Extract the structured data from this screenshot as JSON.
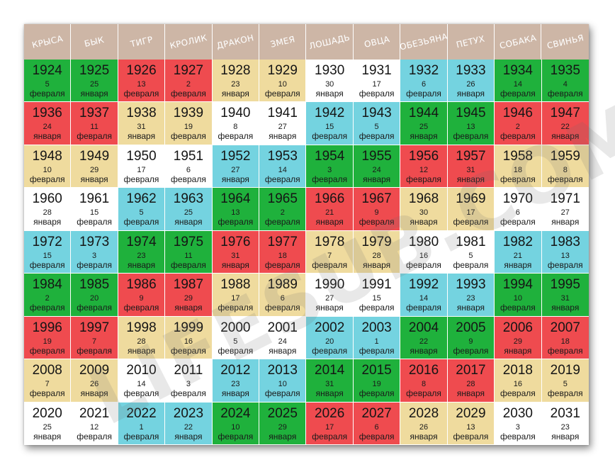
{
  "colors": {
    "green": "#1fb13c",
    "red": "#ef4b4f",
    "beige": "#efdb9e",
    "white": "#ffffff",
    "blue": "#74d3e0",
    "header": "#cdb6a6"
  },
  "animals": [
    "КРЫСА",
    "БЫК",
    "ТИГР",
    "КРОЛИК",
    "ДРАКОН",
    "ЗМЕЯ",
    "ЛОШАДЬ",
    "ОВЦА",
    "ОБЕЗЬЯНА",
    "ПЕТУХ",
    "СОБАКА",
    "СВИНЬЯ"
  ],
  "rows": [
    [
      {
        "year": "1924",
        "day": "5",
        "month": "февраля",
        "color": "green"
      },
      {
        "year": "1925",
        "day": "25",
        "month": "января",
        "color": "green"
      },
      {
        "year": "1926",
        "day": "13",
        "month": "февраля",
        "color": "red"
      },
      {
        "year": "1927",
        "day": "2",
        "month": "февраля",
        "color": "red"
      },
      {
        "year": "1928",
        "day": "23",
        "month": "января",
        "color": "beige"
      },
      {
        "year": "1929",
        "day": "10",
        "month": "февраля",
        "color": "beige"
      },
      {
        "year": "1930",
        "day": "30",
        "month": "января",
        "color": "white"
      },
      {
        "year": "1931",
        "day": "17",
        "month": "февраля",
        "color": "white"
      },
      {
        "year": "1932",
        "day": "6",
        "month": "февраля",
        "color": "blue"
      },
      {
        "year": "1933",
        "day": "26",
        "month": "января",
        "color": "blue"
      },
      {
        "year": "1934",
        "day": "14",
        "month": "февраля",
        "color": "green"
      },
      {
        "year": "1935",
        "day": "4",
        "month": "февраля",
        "color": "green"
      }
    ],
    [
      {
        "year": "1936",
        "day": "24",
        "month": "января",
        "color": "red"
      },
      {
        "year": "1937",
        "day": "11",
        "month": "февраля",
        "color": "red"
      },
      {
        "year": "1938",
        "day": "31",
        "month": "января",
        "color": "beige"
      },
      {
        "year": "1939",
        "day": "19",
        "month": "февраля",
        "color": "beige"
      },
      {
        "year": "1940",
        "day": "8",
        "month": "февраля",
        "color": "white"
      },
      {
        "year": "1941",
        "day": "27",
        "month": "января",
        "color": "white"
      },
      {
        "year": "1942",
        "day": "15",
        "month": "февраля",
        "color": "blue"
      },
      {
        "year": "1943",
        "day": "5",
        "month": "февраля",
        "color": "blue"
      },
      {
        "year": "1944",
        "day": "25",
        "month": "января",
        "color": "green"
      },
      {
        "year": "1945",
        "day": "13",
        "month": "февраля",
        "color": "green"
      },
      {
        "year": "1946",
        "day": "2",
        "month": "февраля",
        "color": "red"
      },
      {
        "year": "1947",
        "day": "22",
        "month": "января",
        "color": "red"
      }
    ],
    [
      {
        "year": "1948",
        "day": "10",
        "month": "февраля",
        "color": "beige"
      },
      {
        "year": "1949",
        "day": "29",
        "month": "января",
        "color": "beige"
      },
      {
        "year": "1950",
        "day": "17",
        "month": "февраля",
        "color": "white"
      },
      {
        "year": "1951",
        "day": "6",
        "month": "февраля",
        "color": "white"
      },
      {
        "year": "1952",
        "day": "27",
        "month": "января",
        "color": "blue"
      },
      {
        "year": "1953",
        "day": "14",
        "month": "февраля",
        "color": "blue"
      },
      {
        "year": "1954",
        "day": "3",
        "month": "февраля",
        "color": "green"
      },
      {
        "year": "1955",
        "day": "24",
        "month": "января",
        "color": "green"
      },
      {
        "year": "1956",
        "day": "12",
        "month": "февраля",
        "color": "red"
      },
      {
        "year": "1957",
        "day": "31",
        "month": "января",
        "color": "red"
      },
      {
        "year": "1958",
        "day": "18",
        "month": "февраля",
        "color": "beige"
      },
      {
        "year": "1959",
        "day": "8",
        "month": "февраля",
        "color": "beige"
      }
    ],
    [
      {
        "year": "1960",
        "day": "28",
        "month": "января",
        "color": "white"
      },
      {
        "year": "1961",
        "day": "15",
        "month": "февраля",
        "color": "white"
      },
      {
        "year": "1962",
        "day": "5",
        "month": "февраля",
        "color": "blue"
      },
      {
        "year": "1963",
        "day": "25",
        "month": "января",
        "color": "blue"
      },
      {
        "year": "1964",
        "day": "13",
        "month": "февраля",
        "color": "green"
      },
      {
        "year": "1965",
        "day": "2",
        "month": "февраля",
        "color": "green"
      },
      {
        "year": "1966",
        "day": "21",
        "month": "января",
        "color": "red"
      },
      {
        "year": "1967",
        "day": "9",
        "month": "февраля",
        "color": "red"
      },
      {
        "year": "1968",
        "day": "30",
        "month": "января",
        "color": "beige"
      },
      {
        "year": "1969",
        "day": "17",
        "month": "февраля",
        "color": "beige"
      },
      {
        "year": "1970",
        "day": "6",
        "month": "февраля",
        "color": "white"
      },
      {
        "year": "1971",
        "day": "27",
        "month": "января",
        "color": "white"
      }
    ],
    [
      {
        "year": "1972",
        "day": "15",
        "month": "февраля",
        "color": "blue"
      },
      {
        "year": "1973",
        "day": "3",
        "month": "февраля",
        "color": "blue"
      },
      {
        "year": "1974",
        "day": "23",
        "month": "января",
        "color": "green"
      },
      {
        "year": "1975",
        "day": "11",
        "month": "февраля",
        "color": "green"
      },
      {
        "year": "1976",
        "day": "31",
        "month": "января",
        "color": "red"
      },
      {
        "year": "1977",
        "day": "18",
        "month": "февраля",
        "color": "red"
      },
      {
        "year": "1978",
        "day": "7",
        "month": "февраля",
        "color": "beige"
      },
      {
        "year": "1979",
        "day": "28",
        "month": "января",
        "color": "beige"
      },
      {
        "year": "1980",
        "day": "16",
        "month": "февраля",
        "color": "white"
      },
      {
        "year": "1981",
        "day": "5",
        "month": "февраля",
        "color": "white"
      },
      {
        "year": "1982",
        "day": "21",
        "month": "января",
        "color": "blue"
      },
      {
        "year": "1983",
        "day": "13",
        "month": "февраля",
        "color": "blue"
      }
    ],
    [
      {
        "year": "1984",
        "day": "2",
        "month": "февраля",
        "color": "green"
      },
      {
        "year": "1985",
        "day": "20",
        "month": "февраля",
        "color": "green"
      },
      {
        "year": "1986",
        "day": "9",
        "month": "февраля",
        "color": "red"
      },
      {
        "year": "1987",
        "day": "29",
        "month": "января",
        "color": "red"
      },
      {
        "year": "1988",
        "day": "17",
        "month": "февраля",
        "color": "beige"
      },
      {
        "year": "1989",
        "day": "6",
        "month": "февраля",
        "color": "beige"
      },
      {
        "year": "1990",
        "day": "27",
        "month": "января",
        "color": "white"
      },
      {
        "year": "1991",
        "day": "15",
        "month": "февраля",
        "color": "white"
      },
      {
        "year": "1992",
        "day": "14",
        "month": "февраля",
        "color": "blue"
      },
      {
        "year": "1993",
        "day": "23",
        "month": "января",
        "color": "blue"
      },
      {
        "year": "1994",
        "day": "10",
        "month": "февраля",
        "color": "green"
      },
      {
        "year": "1995",
        "day": "31",
        "month": "января",
        "color": "green"
      }
    ],
    [
      {
        "year": "1996",
        "day": "19",
        "month": "февраля",
        "color": "red"
      },
      {
        "year": "1997",
        "day": "7",
        "month": "февраля",
        "color": "red"
      },
      {
        "year": "1998",
        "day": "28",
        "month": "января",
        "color": "beige"
      },
      {
        "year": "1999",
        "day": "16",
        "month": "февраля",
        "color": "beige"
      },
      {
        "year": "2000",
        "day": "5",
        "month": "февраля",
        "color": "white"
      },
      {
        "year": "2001",
        "day": "24",
        "month": "января",
        "color": "white"
      },
      {
        "year": "2002",
        "day": "20",
        "month": "февраля",
        "color": "blue"
      },
      {
        "year": "2003",
        "day": "1",
        "month": "февраля",
        "color": "blue"
      },
      {
        "year": "2004",
        "day": "22",
        "month": "января",
        "color": "green"
      },
      {
        "year": "2005",
        "day": "9",
        "month": "февраля",
        "color": "green"
      },
      {
        "year": "2006",
        "day": "29",
        "month": "января",
        "color": "red"
      },
      {
        "year": "2007",
        "day": "18",
        "month": "февраля",
        "color": "red"
      }
    ],
    [
      {
        "year": "2008",
        "day": "7",
        "month": "февраля",
        "color": "beige"
      },
      {
        "year": "2009",
        "day": "26",
        "month": "января",
        "color": "beige"
      },
      {
        "year": "2010",
        "day": "14",
        "month": "февраля",
        "color": "white"
      },
      {
        "year": "2011",
        "day": "3",
        "month": "февраля",
        "color": "white"
      },
      {
        "year": "2012",
        "day": "23",
        "month": "января",
        "color": "blue"
      },
      {
        "year": "2013",
        "day": "10",
        "month": "февраля",
        "color": "blue"
      },
      {
        "year": "2014",
        "day": "31",
        "month": "января",
        "color": "green"
      },
      {
        "year": "2015",
        "day": "19",
        "month": "февраля",
        "color": "green"
      },
      {
        "year": "2016",
        "day": "8",
        "month": "февраля",
        "color": "red"
      },
      {
        "year": "2017",
        "day": "28",
        "month": "января",
        "color": "red"
      },
      {
        "year": "2018",
        "day": "16",
        "month": "февраля",
        "color": "beige"
      },
      {
        "year": "2019",
        "day": "5",
        "month": "февраля",
        "color": "beige"
      }
    ],
    [
      {
        "year": "2020",
        "day": "25",
        "month": "января",
        "color": "white"
      },
      {
        "year": "2021",
        "day": "12",
        "month": "февраля",
        "color": "white"
      },
      {
        "year": "2022",
        "day": "1",
        "month": "февраля",
        "color": "blue"
      },
      {
        "year": "2023",
        "day": "22",
        "month": "января",
        "color": "blue"
      },
      {
        "year": "2024",
        "day": "10",
        "month": "февраля",
        "color": "green"
      },
      {
        "year": "2025",
        "day": "29",
        "month": "января",
        "color": "green"
      },
      {
        "year": "2026",
        "day": "17",
        "month": "февраля",
        "color": "red"
      },
      {
        "year": "2027",
        "day": "6",
        "month": "февраля",
        "color": "red"
      },
      {
        "year": "2028",
        "day": "26",
        "month": "января",
        "color": "beige"
      },
      {
        "year": "2029",
        "day": "13",
        "month": "февраля",
        "color": "beige"
      },
      {
        "year": "2030",
        "day": "3",
        "month": "февраля",
        "color": "white"
      },
      {
        "year": "2031",
        "day": "23",
        "month": "января",
        "color": "white"
      }
    ]
  ],
  "watermark": "LIFESUB.COM"
}
